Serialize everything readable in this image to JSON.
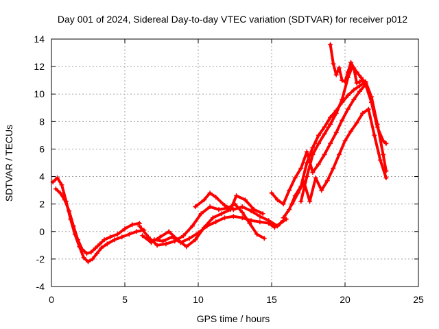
{
  "chart_data": {
    "type": "scatter",
    "title": "Day 001 of 2024, Sidereal Day-to-day VTEC variation (SDTVAR) for receiver p012",
    "xlabel": "GPS time / hours",
    "ylabel": "SDTVAR / TECUs",
    "xlim": [
      0,
      25
    ],
    "ylim": [
      -4,
      14
    ],
    "xticks": [
      "0",
      "5",
      "10",
      "15",
      "20",
      "25"
    ],
    "yticks": [
      "-4",
      "-2",
      "0",
      "2",
      "4",
      "6",
      "8",
      "10",
      "12",
      "14"
    ],
    "grid": true,
    "marker": "plus",
    "color": "#ff0000",
    "series": [
      {
        "x": [
          0.1,
          0.4,
          0.7,
          1.0,
          1.3,
          1.6,
          1.9,
          2.2,
          2.5,
          2.8,
          3.1,
          3.4,
          3.8,
          4.3,
          4.8,
          5.3,
          5.8,
          6.3
        ],
        "y": [
          3.6,
          3.9,
          3.4,
          2.2,
          0.9,
          -0.2,
          -1.1,
          -1.9,
          -2.2,
          -2.0,
          -1.6,
          -1.2,
          -0.9,
          -0.6,
          -0.4,
          -0.2,
          0.0,
          0.1
        ]
      },
      {
        "x": [
          0.3,
          0.6,
          0.9,
          1.2,
          1.5,
          1.8,
          2.1,
          2.4,
          2.7,
          3.0,
          3.3,
          3.6,
          4.0,
          4.5,
          5.0,
          5.5,
          6.0
        ],
        "y": [
          3.1,
          2.8,
          2.3,
          1.5,
          0.4,
          -0.6,
          -1.3,
          -1.6,
          -1.5,
          -1.2,
          -0.9,
          -0.6,
          -0.4,
          -0.2,
          0.2,
          0.5,
          0.6
        ]
      },
      {
        "x": [
          6.0,
          6.6,
          7.2,
          7.8,
          8.4,
          9.0,
          9.6,
          10.2,
          10.8,
          11.4,
          12.0,
          12.5,
          13.0,
          13.5,
          14.0,
          14.5
        ],
        "y": [
          0.4,
          -0.4,
          -1.0,
          -0.9,
          -0.7,
          -0.3,
          0.4,
          1.3,
          1.8,
          1.6,
          1.7,
          2.0,
          1.4,
          0.6,
          -0.2,
          -0.5
        ]
      },
      {
        "x": [
          6.2,
          6.8,
          7.4,
          8.0,
          8.6,
          9.2,
          9.8,
          10.4,
          11.0,
          11.6,
          12.2,
          12.6,
          13.2,
          13.8,
          14.4
        ],
        "y": [
          -0.3,
          -0.8,
          -0.4,
          0.0,
          -0.6,
          -1.1,
          -0.6,
          0.3,
          1.0,
          1.3,
          1.6,
          2.6,
          2.3,
          1.6,
          1.3
        ]
      },
      {
        "x": [
          7.0,
          7.6,
          8.2,
          8.8,
          9.4,
          10.0,
          10.6,
          11.2,
          11.8,
          12.4,
          13.0,
          13.6,
          14.2,
          14.8,
          15.2,
          15.6,
          16.0
        ],
        "y": [
          -0.6,
          -0.7,
          -0.4,
          -0.8,
          -0.5,
          -0.1,
          0.4,
          0.7,
          1.0,
          1.1,
          1.0,
          0.8,
          0.7,
          0.6,
          0.3,
          0.6,
          0.9
        ]
      },
      {
        "x": [
          9.8,
          10.4,
          10.8,
          11.2,
          11.8,
          12.4,
          13.0,
          13.6,
          14.2,
          14.8,
          15.4,
          15.8
        ],
        "y": [
          1.8,
          2.3,
          2.8,
          2.5,
          1.9,
          1.6,
          1.8,
          1.5,
          1.1,
          0.8,
          0.4,
          0.8
        ]
      },
      {
        "x": [
          15.0,
          15.4,
          15.8,
          16.2,
          16.6,
          17.0,
          17.4,
          17.8,
          18.2,
          18.6,
          19.0,
          19.4,
          19.8,
          20.2,
          20.6,
          21.0,
          21.4,
          21.8,
          22.2,
          22.6,
          22.8
        ],
        "y": [
          2.8,
          2.3,
          2.0,
          3.0,
          3.9,
          4.6,
          5.8,
          4.3,
          4.9,
          5.6,
          6.4,
          7.2,
          8.1,
          8.9,
          9.6,
          10.2,
          10.7,
          9.4,
          7.6,
          6.6,
          6.4
        ]
      },
      {
        "x": [
          15.8,
          16.2,
          16.6,
          17.0,
          17.4,
          17.8,
          18.2,
          18.6,
          19.0,
          19.4,
          19.8,
          20.2,
          20.6,
          21.0,
          21.4,
          21.8,
          22.2,
          22.6,
          22.8
        ],
        "y": [
          1.0,
          1.6,
          2.6,
          3.3,
          5.0,
          6.1,
          7.0,
          7.6,
          8.3,
          8.8,
          9.4,
          9.9,
          10.3,
          10.6,
          10.9,
          9.8,
          7.8,
          5.6,
          4.4
        ]
      },
      {
        "x": [
          16.4,
          16.8,
          17.2,
          17.6,
          18.0,
          18.4,
          18.8,
          19.2,
          19.6,
          20.0,
          20.4,
          20.8,
          21.2,
          21.6,
          22.0,
          22.4,
          22.8
        ],
        "y": [
          2.0,
          2.8,
          3.6,
          2.2,
          3.9,
          3.0,
          3.7,
          4.6,
          5.6,
          6.6,
          7.3,
          7.9,
          8.6,
          8.9,
          7.0,
          5.2,
          3.9
        ]
      },
      {
        "x": [
          17.0,
          17.4,
          17.8,
          18.2,
          18.6,
          19.0,
          19.4,
          19.8,
          20.2,
          20.5,
          20.8,
          21.1,
          21.4
        ],
        "y": [
          2.2,
          4.0,
          5.6,
          6.4,
          7.1,
          7.8,
          8.6,
          9.6,
          11.2,
          12.0,
          11.6,
          11.2,
          10.8
        ]
      },
      {
        "x": [
          19.0,
          19.2,
          19.4,
          19.6,
          19.8,
          20.0,
          20.2,
          20.4,
          20.6,
          20.8,
          21.0,
          21.2
        ],
        "y": [
          13.6,
          12.2,
          11.4,
          11.9,
          11.0,
          10.9,
          11.6,
          12.3,
          11.9,
          10.8,
          10.9,
          11.0
        ]
      }
    ]
  }
}
